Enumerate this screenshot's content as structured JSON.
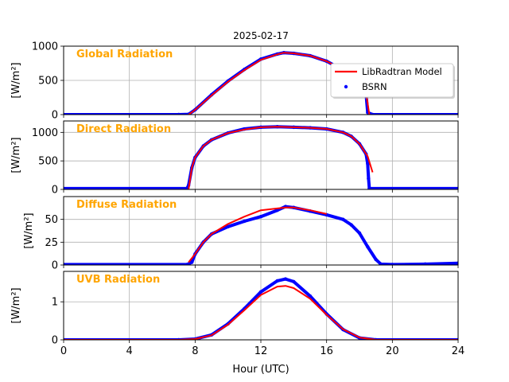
{
  "figure": {
    "title": "2025-02-17",
    "xlabel": "Hour (UTC)"
  },
  "legend": {
    "placement": "upper-right of top panel",
    "entries": [
      {
        "label": "LibRadtran Model",
        "color": "#ff0000",
        "marker": "line"
      },
      {
        "label": "BSRN",
        "color": "#0000ff",
        "marker": "dot"
      }
    ]
  },
  "colors": {
    "model": "#ff0000",
    "obs": "#0000ff",
    "panel_title": "#ffa500",
    "grid": "#b0b0b0"
  },
  "chart_data": [
    {
      "type": "line",
      "title": "Global Radiation",
      "ylabel": "[W/m²]",
      "xlabel": "",
      "xlim": [
        0,
        24
      ],
      "ylim": [
        0,
        1000
      ],
      "yticks": [
        0,
        500,
        1000
      ],
      "xticks": [
        0,
        4,
        8,
        12,
        16,
        20,
        24
      ],
      "grid": true,
      "series": [
        {
          "name": "LibRadtran Model",
          "x": [
            7.6,
            8,
            9,
            10,
            11,
            12,
            13,
            13.4,
            14,
            15,
            16,
            17,
            18,
            18.4,
            18.6
          ],
          "values": [
            0,
            70,
            280,
            480,
            650,
            800,
            880,
            905,
            895,
            860,
            780,
            650,
            460,
            320,
            0
          ]
        },
        {
          "name": "BSRN",
          "x": [
            0,
            7,
            7.6,
            8,
            9,
            10,
            11,
            12,
            13,
            13.4,
            14,
            15,
            16,
            17,
            18,
            18.4,
            18.5,
            18.8,
            24
          ],
          "values": [
            0,
            0,
            5,
            70,
            290,
            490,
            660,
            810,
            885,
            905,
            895,
            860,
            780,
            650,
            455,
            300,
            30,
            0,
            0
          ]
        }
      ]
    },
    {
      "type": "line",
      "title": "Direct Radiation",
      "ylabel": "[W/m²]",
      "xlabel": "",
      "xlim": [
        0,
        24
      ],
      "ylim": [
        0,
        1200
      ],
      "yticks": [
        0,
        500,
        1000
      ],
      "xticks": [
        0,
        4,
        8,
        12,
        16,
        20,
        24
      ],
      "grid": true,
      "series": [
        {
          "name": "LibRadtran Model",
          "x": [
            7.6,
            7.8,
            8,
            8.5,
            9,
            10,
            11,
            12,
            13,
            14,
            15,
            16,
            17,
            17.5,
            18,
            18.5,
            18.8
          ],
          "values": [
            0,
            380,
            560,
            760,
            870,
            990,
            1050,
            1090,
            1100,
            1090,
            1080,
            1060,
            1000,
            930,
            800,
            580,
            300
          ]
        },
        {
          "name": "BSRN",
          "x": [
            0,
            7.5,
            7.6,
            7.8,
            8,
            8.5,
            9,
            10,
            11,
            12,
            13,
            14,
            15,
            16,
            17,
            17.5,
            18,
            18.4,
            18.5,
            18.55,
            18.6,
            24
          ],
          "values": [
            15,
            15,
            70,
            380,
            560,
            760,
            870,
            990,
            1060,
            1090,
            1100,
            1090,
            1080,
            1060,
            1000,
            930,
            800,
            620,
            450,
            190,
            15,
            15
          ]
        }
      ]
    },
    {
      "type": "line",
      "title": "Diffuse Radiation",
      "ylabel": "[W/m²]",
      "xlabel": "",
      "xlim": [
        0,
        24
      ],
      "ylim": [
        0,
        75
      ],
      "yticks": [
        0,
        25,
        50
      ],
      "xticks": [
        0,
        4,
        8,
        12,
        16,
        20,
        24
      ],
      "grid": true,
      "series": [
        {
          "name": "LibRadtran Model",
          "x": [
            7.6,
            8,
            8.5,
            9,
            10,
            11,
            12,
            13,
            13.5,
            14,
            15,
            16
          ],
          "values": [
            3,
            12,
            25,
            34,
            45,
            53,
            60,
            62,
            63,
            63,
            60,
            56
          ]
        },
        {
          "name": "BSRN",
          "x": [
            0,
            7.5,
            7.8,
            8,
            8.5,
            9,
            10,
            11,
            12,
            13,
            13.5,
            14,
            15,
            16,
            17,
            17.5,
            18,
            18.5,
            19,
            19.3,
            20,
            22,
            24
          ],
          "values": [
            0.5,
            0.5,
            3,
            12,
            25,
            34,
            42,
            48,
            53,
            60,
            64,
            63,
            59,
            55,
            50,
            44,
            35,
            20,
            6,
            1,
            0.5,
            1,
            2
          ]
        }
      ]
    },
    {
      "type": "line",
      "title": "UVB Radiation",
      "ylabel": "[W/m²]",
      "xlabel": "Hour (UTC)",
      "xlim": [
        0,
        24
      ],
      "ylim": [
        0,
        1.8
      ],
      "yticks": [
        0,
        1
      ],
      "xticks": [
        0,
        4,
        8,
        12,
        16,
        20,
        24
      ],
      "grid": true,
      "series": [
        {
          "name": "LibRadtran Model",
          "x": [
            0,
            7,
            8,
            9,
            10,
            11,
            12,
            13,
            13.5,
            14,
            15,
            16,
            17,
            18,
            19,
            24
          ],
          "values": [
            0,
            0,
            0.02,
            0.12,
            0.4,
            0.78,
            1.18,
            1.4,
            1.42,
            1.36,
            1.08,
            0.66,
            0.28,
            0.06,
            0,
            0
          ]
        },
        {
          "name": "BSRN",
          "x": [
            0,
            7,
            8,
            9,
            10,
            11,
            12,
            13,
            13.5,
            14,
            15,
            16,
            17,
            18,
            19,
            24
          ],
          "values": [
            0,
            0,
            0.02,
            0.13,
            0.42,
            0.82,
            1.26,
            1.55,
            1.6,
            1.53,
            1.15,
            0.68,
            0.27,
            0.05,
            0,
            0
          ]
        }
      ]
    }
  ]
}
